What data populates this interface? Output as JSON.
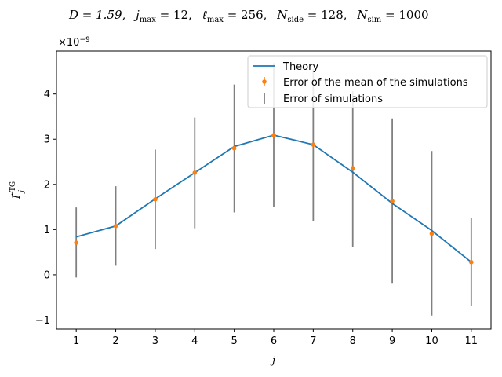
{
  "chart_data": {
    "type": "line",
    "title": "D = 1.59,  j_max = 12,  ℓ_max = 256,  N_side = 128,  N_sim = 1000",
    "title_parts": {
      "D": "D = 1.59,",
      "j": "j",
      "j_sub": "max",
      "j_val": " = 12,",
      "l": "ℓ",
      "l_sub": "max",
      "l_val": " = 256,",
      "ns": "N",
      "ns_sub": "side",
      "ns_val": " = 128,",
      "nsim": "N",
      "nsim_sub": "sim",
      "nsim_val": " = 1000"
    },
    "xlabel": "j",
    "ylabel": "Γ̃",
    "ylabel_sup": "TG",
    "ylabel_sub": "j",
    "y_offset_text": "×10⁻⁹",
    "y_offset_base": "×10",
    "y_offset_exp": "−9",
    "xlim": [
      0.5,
      11.5
    ],
    "ylim": [
      -1.2,
      4.95
    ],
    "x_ticks": [
      1,
      2,
      3,
      4,
      5,
      6,
      7,
      8,
      9,
      10,
      11
    ],
    "y_ticks": [
      -1,
      0,
      1,
      2,
      3,
      4
    ],
    "y_tick_labels": [
      "−1",
      "0",
      "1",
      "2",
      "3",
      "4"
    ],
    "legend_position": "top-right",
    "series": [
      {
        "name": "Theory",
        "color": "#1f77b4",
        "x": [
          1,
          2,
          3,
          4,
          5,
          6,
          7,
          8,
          9,
          10,
          11
        ],
        "y": [
          0.84,
          1.08,
          1.68,
          2.26,
          2.84,
          3.09,
          2.88,
          2.27,
          1.58,
          0.98,
          0.28
        ]
      },
      {
        "name": "Error of the mean of the simulations",
        "color": "#ff7f0e",
        "x": [
          1,
          2,
          3,
          4,
          5,
          6,
          7,
          8,
          9,
          10,
          11
        ],
        "y": [
          0.71,
          1.08,
          1.67,
          2.26,
          2.8,
          3.09,
          2.88,
          2.36,
          1.63,
          0.91,
          0.28
        ]
      },
      {
        "name": "Error of simulations",
        "color": "#808080",
        "x": [
          1,
          2,
          3,
          4,
          5,
          6,
          7,
          8,
          9,
          10,
          11
        ],
        "low": [
          -0.06,
          0.2,
          0.57,
          1.03,
          1.38,
          1.51,
          1.18,
          0.61,
          -0.18,
          -0.9,
          -0.68
        ],
        "high": [
          1.49,
          1.96,
          2.77,
          3.48,
          4.21,
          4.68,
          4.55,
          4.06,
          3.46,
          2.74,
          1.26
        ]
      }
    ]
  }
}
